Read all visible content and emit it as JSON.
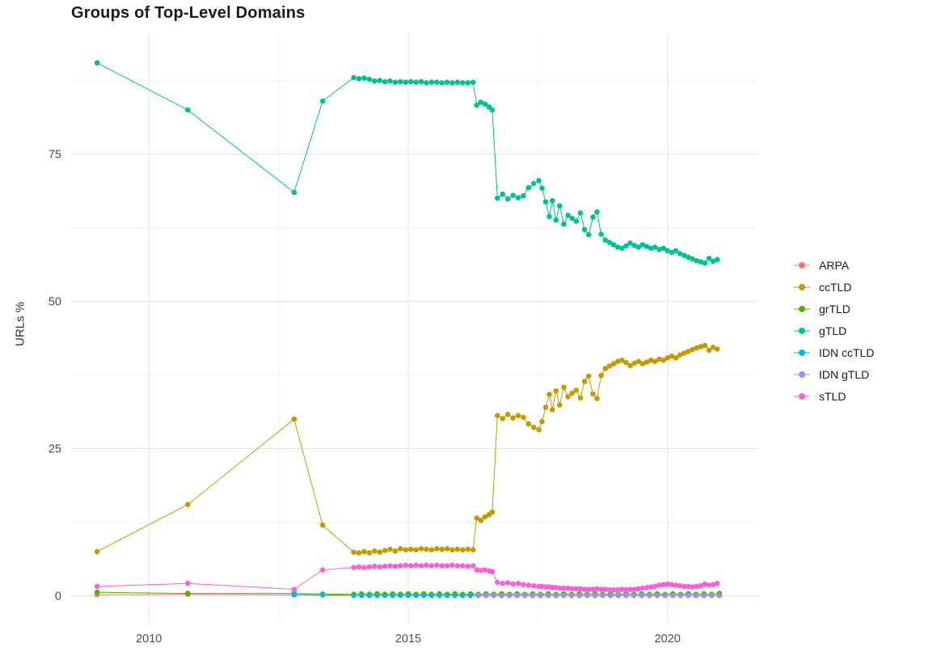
{
  "chart_data": {
    "type": "line",
    "title": "Groups of Top-Level Domains",
    "xlabel": "",
    "ylabel": "URLs %",
    "xlim": [
      2008.5,
      2021.75
    ],
    "ylim": [
      -4.6,
      95.4
    ],
    "grid": true,
    "legend_position": "right",
    "axes": {
      "x_ticks": [
        {
          "value": 2010,
          "label": "2010"
        },
        {
          "value": 2015,
          "label": "2015"
        },
        {
          "value": 2020,
          "label": "2020"
        }
      ],
      "y_ticks": [
        {
          "value": 0,
          "label": "0"
        },
        {
          "value": 25,
          "label": "25"
        },
        {
          "value": 50,
          "label": "50"
        },
        {
          "value": 75,
          "label": "75"
        }
      ],
      "x_minor": [
        2012.5,
        2017.5
      ],
      "y_minor": [
        12.5,
        37.5,
        62.5,
        87.5
      ]
    },
    "colors": {
      "background": "#ffffff",
      "grid_major": "#e3e3e3",
      "grid_minor": "#f1f1f1",
      "tick_text": "#4d4d4d",
      "title_text": "#1a1a1a"
    },
    "series": [
      {
        "name": "ARPA",
        "color": "#F8766D",
        "points": [
          [
            2009.0,
            0.2
          ],
          [
            2010.75,
            0.25
          ],
          [
            2012.8,
            0.15
          ]
        ],
        "dense_segments": [
          {
            "from": 2013.95,
            "to": 2021.0,
            "step": 0.15,
            "value": 0.05
          }
        ]
      },
      {
        "name": "ccTLD",
        "color": "#C49A00",
        "points": [
          [
            2009.0,
            7.5
          ],
          [
            2010.75,
            15.5
          ],
          [
            2012.8,
            30
          ],
          [
            2013.35,
            12
          ],
          [
            2013.95,
            7.4
          ],
          [
            2014.05,
            7.3
          ],
          [
            2014.15,
            7.5
          ],
          [
            2014.25,
            7.3
          ],
          [
            2014.35,
            7.6
          ],
          [
            2014.45,
            7.4
          ],
          [
            2014.55,
            7.7
          ],
          [
            2014.65,
            7.9
          ],
          [
            2014.75,
            7.6
          ],
          [
            2014.85,
            8
          ],
          [
            2014.95,
            7.8
          ],
          [
            2015.05,
            7.9
          ],
          [
            2015.15,
            7.8
          ],
          [
            2015.25,
            8
          ],
          [
            2015.35,
            7.9
          ],
          [
            2015.45,
            7.8
          ],
          [
            2015.55,
            8
          ],
          [
            2015.65,
            7.9
          ],
          [
            2015.75,
            8
          ],
          [
            2015.85,
            7.8
          ],
          [
            2015.95,
            7.9
          ],
          [
            2016.05,
            7.8
          ],
          [
            2016.15,
            7.9
          ],
          [
            2016.25,
            7.8
          ],
          [
            2016.32,
            13.2
          ],
          [
            2016.4,
            12.8
          ],
          [
            2016.48,
            13.4
          ],
          [
            2016.56,
            13.8
          ],
          [
            2016.62,
            14.2
          ],
          [
            2016.72,
            30.6
          ],
          [
            2016.82,
            30.1
          ],
          [
            2016.92,
            30.8
          ],
          [
            2017.02,
            30.2
          ],
          [
            2017.12,
            30.6
          ],
          [
            2017.22,
            30.3
          ],
          [
            2017.32,
            29.2
          ],
          [
            2017.42,
            28.6
          ],
          [
            2017.52,
            28.2
          ],
          [
            2017.58,
            29.6
          ],
          [
            2017.65,
            32
          ],
          [
            2017.72,
            34.2
          ],
          [
            2017.78,
            31.6
          ],
          [
            2017.85,
            34.8
          ],
          [
            2017.92,
            32.4
          ],
          [
            2018.0,
            35.4
          ],
          [
            2018.08,
            33.8
          ],
          [
            2018.16,
            34.4
          ],
          [
            2018.24,
            34.9
          ],
          [
            2018.32,
            33.6
          ],
          [
            2018.4,
            36.4
          ],
          [
            2018.48,
            37.3
          ],
          [
            2018.56,
            34.3
          ],
          [
            2018.64,
            33.5
          ],
          [
            2018.72,
            37.4
          ],
          [
            2018.8,
            38.6
          ],
          [
            2018.88,
            39
          ],
          [
            2018.96,
            39.4
          ],
          [
            2019.04,
            39.8
          ],
          [
            2019.12,
            40
          ],
          [
            2019.2,
            39.6
          ],
          [
            2019.28,
            39.1
          ],
          [
            2019.36,
            39.5
          ],
          [
            2019.44,
            39.8
          ],
          [
            2019.52,
            39.4
          ],
          [
            2019.6,
            39.7
          ],
          [
            2019.68,
            40
          ],
          [
            2019.76,
            39.8
          ],
          [
            2019.84,
            40.2
          ],
          [
            2019.92,
            40
          ],
          [
            2020.0,
            40.4
          ],
          [
            2020.08,
            40.7
          ],
          [
            2020.16,
            40.4
          ],
          [
            2020.24,
            40.9
          ],
          [
            2020.32,
            41.2
          ],
          [
            2020.4,
            41.5
          ],
          [
            2020.48,
            41.8
          ],
          [
            2020.56,
            42.1
          ],
          [
            2020.64,
            42.3
          ],
          [
            2020.72,
            42.5
          ],
          [
            2020.8,
            41.7
          ],
          [
            2020.88,
            42.2
          ],
          [
            2020.96,
            41.9
          ]
        ]
      },
      {
        "name": "grTLD",
        "color": "#53B400",
        "points": [
          [
            2009.0,
            0.6
          ],
          [
            2010.75,
            0.4
          ],
          [
            2012.8,
            0.4
          ],
          [
            2013.35,
            0.3
          ],
          [
            2021.0,
            0.4
          ]
        ],
        "dense_segments": [
          {
            "from": 2013.95,
            "to": 2020.95,
            "step": 0.15,
            "value": 0.3,
            "jitter": 0.05
          }
        ]
      },
      {
        "name": "gTLD",
        "color": "#00C094",
        "points": [
          [
            2009.0,
            90.5
          ],
          [
            2010.75,
            82.5
          ],
          [
            2012.8,
            68.5
          ],
          [
            2013.35,
            84
          ],
          [
            2013.95,
            88
          ],
          [
            2014.05,
            87.8
          ],
          [
            2014.15,
            87.9
          ],
          [
            2014.25,
            87.7
          ],
          [
            2014.35,
            87.4
          ],
          [
            2014.45,
            87.5
          ],
          [
            2014.55,
            87.3
          ],
          [
            2014.65,
            87.4
          ],
          [
            2014.75,
            87.2
          ],
          [
            2014.85,
            87.3
          ],
          [
            2014.95,
            87.2
          ],
          [
            2015.05,
            87.3
          ],
          [
            2015.15,
            87.2
          ],
          [
            2015.25,
            87.3
          ],
          [
            2015.35,
            87.1
          ],
          [
            2015.45,
            87.2
          ],
          [
            2015.55,
            87.2
          ],
          [
            2015.65,
            87.1
          ],
          [
            2015.75,
            87.2
          ],
          [
            2015.85,
            87.1
          ],
          [
            2015.95,
            87.2
          ],
          [
            2016.05,
            87.1
          ],
          [
            2016.15,
            87.1
          ],
          [
            2016.25,
            87.2
          ],
          [
            2016.32,
            83.3
          ],
          [
            2016.4,
            83.8
          ],
          [
            2016.48,
            83.5
          ],
          [
            2016.56,
            83
          ],
          [
            2016.62,
            82.5
          ],
          [
            2016.72,
            67.5
          ],
          [
            2016.82,
            68.2
          ],
          [
            2016.92,
            67.4
          ],
          [
            2017.02,
            68
          ],
          [
            2017.12,
            67.6
          ],
          [
            2017.22,
            67.9
          ],
          [
            2017.32,
            69.3
          ],
          [
            2017.42,
            70
          ],
          [
            2017.52,
            70.5
          ],
          [
            2017.58,
            69.2
          ],
          [
            2017.65,
            66.9
          ],
          [
            2017.72,
            64.4
          ],
          [
            2017.78,
            67.1
          ],
          [
            2017.85,
            63.8
          ],
          [
            2017.92,
            66.2
          ],
          [
            2018.0,
            63.1
          ],
          [
            2018.08,
            64.6
          ],
          [
            2018.16,
            64.1
          ],
          [
            2018.24,
            63.6
          ],
          [
            2018.32,
            65
          ],
          [
            2018.4,
            62.2
          ],
          [
            2018.48,
            61.3
          ],
          [
            2018.56,
            64.3
          ],
          [
            2018.64,
            65.2
          ],
          [
            2018.72,
            61.4
          ],
          [
            2018.8,
            60.4
          ],
          [
            2018.88,
            60
          ],
          [
            2018.96,
            59.6
          ],
          [
            2019.04,
            59.2
          ],
          [
            2019.12,
            59
          ],
          [
            2019.2,
            59.4
          ],
          [
            2019.28,
            59.9
          ],
          [
            2019.36,
            59.5
          ],
          [
            2019.44,
            59.2
          ],
          [
            2019.52,
            59.6
          ],
          [
            2019.6,
            59.3
          ],
          [
            2019.68,
            59
          ],
          [
            2019.76,
            59.2
          ],
          [
            2019.84,
            58.8
          ],
          [
            2019.92,
            59
          ],
          [
            2020.0,
            58.6
          ],
          [
            2020.08,
            58.3
          ],
          [
            2020.16,
            58.6
          ],
          [
            2020.24,
            58.1
          ],
          [
            2020.32,
            57.8
          ],
          [
            2020.4,
            57.5
          ],
          [
            2020.48,
            57.2
          ],
          [
            2020.56,
            56.9
          ],
          [
            2020.64,
            56.7
          ],
          [
            2020.72,
            56.5
          ],
          [
            2020.8,
            57.3
          ],
          [
            2020.88,
            56.8
          ],
          [
            2020.96,
            57.1
          ]
        ]
      },
      {
        "name": "IDN ccTLD",
        "color": "#00B6EB",
        "points": [
          [
            2012.8,
            0.2
          ],
          [
            2013.35,
            0.15
          ]
        ],
        "dense_segments": [
          {
            "from": 2013.95,
            "to": 2021.0,
            "step": 0.15,
            "value": 0.08
          }
        ]
      },
      {
        "name": "IDN gTLD",
        "color": "#A58AFF",
        "points": [],
        "dense_segments": [
          {
            "from": 2016.35,
            "to": 2021.0,
            "step": 0.15,
            "value": 0.06
          }
        ]
      },
      {
        "name": "sTLD",
        "color": "#FB61D7",
        "points": [
          [
            2009.0,
            1.6
          ],
          [
            2010.75,
            2.1
          ],
          [
            2012.8,
            1.1
          ],
          [
            2013.35,
            4.4
          ],
          [
            2013.95,
            4.8
          ],
          [
            2014.05,
            4.9
          ],
          [
            2014.15,
            4.8
          ],
          [
            2014.25,
            4.9
          ],
          [
            2014.35,
            5
          ],
          [
            2014.45,
            4.9
          ],
          [
            2014.55,
            5
          ],
          [
            2014.65,
            5.1
          ],
          [
            2014.75,
            5
          ],
          [
            2014.85,
            5.1
          ],
          [
            2014.95,
            5.2
          ],
          [
            2015.05,
            5.1
          ],
          [
            2015.15,
            5.2
          ],
          [
            2015.25,
            5.1
          ],
          [
            2015.35,
            5.2
          ],
          [
            2015.45,
            5.1
          ],
          [
            2015.55,
            5.2
          ],
          [
            2015.65,
            5.1
          ],
          [
            2015.75,
            5.1
          ],
          [
            2015.85,
            5.2
          ],
          [
            2015.95,
            5.1
          ],
          [
            2016.05,
            5.1
          ],
          [
            2016.15,
            5
          ],
          [
            2016.25,
            5.1
          ],
          [
            2016.32,
            4.4
          ],
          [
            2016.4,
            4.3
          ],
          [
            2016.48,
            4.4
          ],
          [
            2016.56,
            4.2
          ],
          [
            2016.62,
            4.1
          ],
          [
            2016.72,
            2.3
          ],
          [
            2016.82,
            2.1
          ],
          [
            2016.92,
            2.2
          ],
          [
            2017.02,
            2
          ],
          [
            2017.12,
            2.1
          ],
          [
            2017.22,
            1.9
          ],
          [
            2017.32,
            1.8
          ],
          [
            2017.42,
            1.7
          ],
          [
            2017.52,
            1.6
          ],
          [
            2017.58,
            1.6
          ],
          [
            2017.65,
            1.5
          ],
          [
            2017.72,
            1.5
          ],
          [
            2017.78,
            1.4
          ],
          [
            2017.85,
            1.4
          ],
          [
            2017.92,
            1.3
          ],
          [
            2018.0,
            1.3
          ],
          [
            2018.08,
            1.3
          ],
          [
            2018.16,
            1.2
          ],
          [
            2018.24,
            1.2
          ],
          [
            2018.32,
            1.2
          ],
          [
            2018.4,
            1.1
          ],
          [
            2018.48,
            1.1
          ],
          [
            2018.56,
            1.1
          ],
          [
            2018.64,
            1.2
          ],
          [
            2018.72,
            1.1
          ],
          [
            2018.8,
            1.1
          ],
          [
            2018.88,
            1
          ],
          [
            2018.96,
            1
          ],
          [
            2019.04,
            1
          ],
          [
            2019.12,
            1.1
          ],
          [
            2019.2,
            1
          ],
          [
            2019.28,
            1.1
          ],
          [
            2019.36,
            1.1
          ],
          [
            2019.44,
            1.2
          ],
          [
            2019.52,
            1.3
          ],
          [
            2019.6,
            1.4
          ],
          [
            2019.68,
            1.5
          ],
          [
            2019.76,
            1.6
          ],
          [
            2019.84,
            1.8
          ],
          [
            2019.92,
            1.9
          ],
          [
            2020.0,
            2
          ],
          [
            2020.08,
            1.9
          ],
          [
            2020.16,
            1.8
          ],
          [
            2020.24,
            1.7
          ],
          [
            2020.32,
            1.6
          ],
          [
            2020.4,
            1.6
          ],
          [
            2020.48,
            1.5
          ],
          [
            2020.56,
            1.6
          ],
          [
            2020.64,
            1.7
          ],
          [
            2020.72,
            2
          ],
          [
            2020.8,
            1.8
          ],
          [
            2020.88,
            1.9
          ],
          [
            2020.96,
            2.1
          ]
        ]
      }
    ]
  }
}
